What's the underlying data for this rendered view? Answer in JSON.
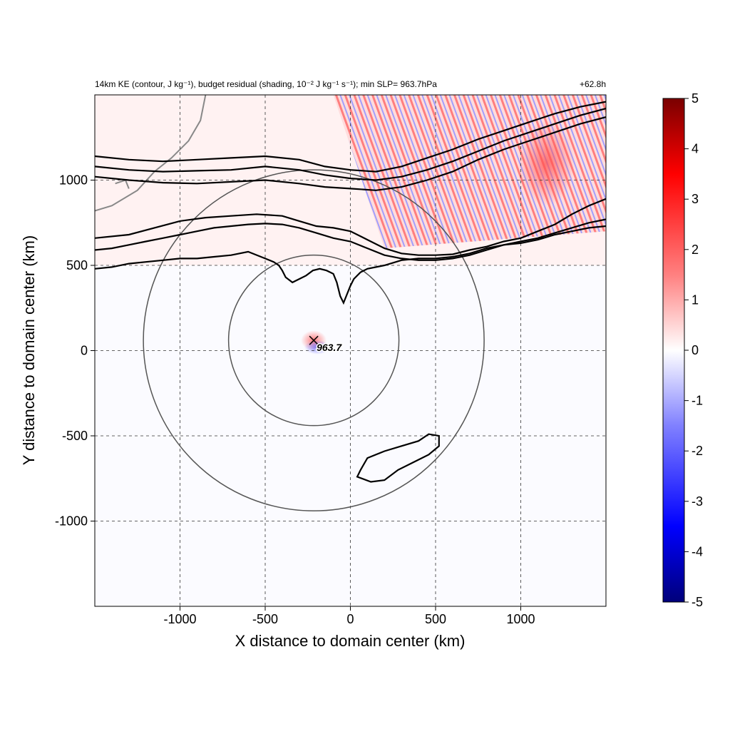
{
  "title_left": "14km KE (contour, J kg⁻¹), budget residual (shading, 10⁻² J kg⁻¹ s⁻¹); min SLP= 963.7hPa",
  "title_right": "+62.8h",
  "colors": {
    "contour": "#000000",
    "ring": "#555555",
    "grid": "#333333",
    "coast": "#888888",
    "colormap": [
      "#00007a",
      "#0000ff",
      "#7a7aff",
      "#ffffff",
      "#ff7a7a",
      "#ff0000",
      "#7a0000"
    ]
  },
  "chart_data": {
    "type": "heatmap",
    "xlabel": "X distance to domain center (km)",
    "ylabel": "Y distance to domain center (km)",
    "xlim": [
      -1500,
      1500
    ],
    "ylim": [
      -1500,
      1500
    ],
    "x_ticks": [
      -1000,
      -500,
      0,
      500,
      1000
    ],
    "y_ticks": [
      -1000,
      -500,
      0,
      500,
      1000
    ],
    "x_tick_labels": [
      "-1000",
      "-500",
      "0",
      "500",
      "1000"
    ],
    "y_tick_labels": [
      "-1000",
      "-500",
      "0",
      "500",
      "1000"
    ],
    "grid": true,
    "colorbar": {
      "range": [
        -5,
        5
      ],
      "ticks": [
        5,
        4,
        3,
        2,
        1,
        0,
        -1,
        -2,
        -3,
        -4,
        -5
      ],
      "tick_labels": [
        "5",
        "4",
        "3",
        "2",
        "1",
        "0",
        "-1",
        "-2",
        "-3",
        "-4",
        "-5"
      ],
      "placement": "right"
    },
    "storm": {
      "x": -215,
      "y": 60,
      "label": "963.7",
      "min_slp_hPa": 963.7
    },
    "range_rings": [
      {
        "center_x": -215,
        "center_y": 60,
        "radius_km": 500
      },
      {
        "center_x": -215,
        "center_y": 60,
        "radius_km": 1000
      }
    ],
    "ke_contours": [
      {
        "points": [
          [
            -1500,
            -1500
          ],
          [
            -1500,
            -1500
          ]
        ]
      },
      {
        "points": [
          [
            -1500,
            660
          ],
          [
            -1300,
            680
          ],
          [
            -1150,
            720
          ],
          [
            -1000,
            760
          ],
          [
            -850,
            780
          ],
          [
            -700,
            790
          ],
          [
            -550,
            800
          ],
          [
            -400,
            790
          ],
          [
            -300,
            760
          ],
          [
            -200,
            730
          ],
          [
            -100,
            720
          ],
          [
            0,
            700
          ],
          [
            100,
            650
          ],
          [
            200,
            600
          ],
          [
            300,
            570
          ],
          [
            400,
            560
          ],
          [
            500,
            560
          ],
          [
            600,
            565
          ],
          [
            700,
            590
          ],
          [
            800,
            610
          ],
          [
            900,
            640
          ],
          [
            1000,
            660
          ],
          [
            1100,
            700
          ],
          [
            1200,
            740
          ],
          [
            1300,
            800
          ],
          [
            1400,
            850
          ],
          [
            1500,
            890
          ]
        ]
      },
      {
        "points": [
          [
            -1500,
            1020
          ],
          [
            -1300,
            1000
          ],
          [
            -1100,
            985
          ],
          [
            -900,
            980
          ],
          [
            -700,
            990
          ],
          [
            -500,
            1000
          ],
          [
            -300,
            980
          ],
          [
            -150,
            960
          ],
          [
            0,
            950
          ],
          [
            150,
            940
          ],
          [
            300,
            960
          ],
          [
            450,
            1000
          ],
          [
            600,
            1050
          ],
          [
            750,
            1120
          ],
          [
            900,
            1180
          ],
          [
            1050,
            1230
          ],
          [
            1200,
            1280
          ],
          [
            1350,
            1330
          ],
          [
            1500,
            1370
          ]
        ]
      },
      {
        "points": [
          [
            -1500,
            1080
          ],
          [
            -1300,
            1060
          ],
          [
            -1100,
            1050
          ],
          [
            -900,
            1055
          ],
          [
            -700,
            1060
          ],
          [
            -500,
            1080
          ],
          [
            -300,
            1060
          ],
          [
            -150,
            1030
          ],
          [
            0,
            1010
          ],
          [
            150,
            1000
          ],
          [
            300,
            1020
          ],
          [
            450,
            1060
          ],
          [
            600,
            1110
          ],
          [
            750,
            1170
          ],
          [
            900,
            1230
          ],
          [
            1050,
            1280
          ],
          [
            1200,
            1330
          ],
          [
            1350,
            1380
          ],
          [
            1500,
            1420
          ]
        ]
      },
      {
        "points": [
          [
            -1500,
            1140
          ],
          [
            -1300,
            1120
          ],
          [
            -1100,
            1110
          ],
          [
            -900,
            1120
          ],
          [
            -700,
            1130
          ],
          [
            -500,
            1140
          ],
          [
            -300,
            1120
          ],
          [
            -150,
            1080
          ],
          [
            0,
            1060
          ],
          [
            150,
            1050
          ],
          [
            300,
            1080
          ],
          [
            450,
            1130
          ],
          [
            600,
            1180
          ],
          [
            750,
            1240
          ],
          [
            900,
            1290
          ],
          [
            1050,
            1340
          ],
          [
            1200,
            1390
          ],
          [
            1350,
            1430
          ],
          [
            1500,
            1460
          ]
        ]
      }
    ],
    "ke_contours_outer": [
      {
        "points": [
          [
            -1500,
            590
          ],
          [
            -1400,
            600
          ],
          [
            -1300,
            620
          ],
          [
            -1200,
            640
          ],
          [
            -1100,
            660
          ],
          [
            -1000,
            680
          ],
          [
            -900,
            700
          ],
          [
            -800,
            720
          ],
          [
            -700,
            730
          ],
          [
            -600,
            740
          ],
          [
            -500,
            745
          ],
          [
            -400,
            740
          ],
          [
            -300,
            720
          ],
          [
            -200,
            690
          ],
          [
            -100,
            660
          ],
          [
            0,
            640
          ],
          [
            100,
            600
          ],
          [
            200,
            560
          ],
          [
            300,
            540
          ],
          [
            400,
            530
          ],
          [
            500,
            530
          ],
          [
            600,
            540
          ],
          [
            700,
            560
          ],
          [
            800,
            590
          ],
          [
            900,
            620
          ],
          [
            1000,
            640
          ],
          [
            1100,
            660
          ],
          [
            1200,
            690
          ],
          [
            1300,
            720
          ],
          [
            1400,
            750
          ],
          [
            1500,
            770
          ]
        ]
      },
      {
        "points": [
          [
            -1500,
            480
          ],
          [
            -1400,
            490
          ],
          [
            -1300,
            510
          ],
          [
            -1200,
            520
          ],
          [
            -1100,
            530
          ],
          [
            -1000,
            540
          ],
          [
            -900,
            540
          ],
          [
            -800,
            550
          ],
          [
            -700,
            560
          ],
          [
            -600,
            580
          ],
          [
            -500,
            540
          ],
          [
            -450,
            520
          ],
          [
            -420,
            500
          ],
          [
            -400,
            470
          ],
          [
            -380,
            430
          ],
          [
            -340,
            400
          ],
          [
            -300,
            420
          ],
          [
            -260,
            440
          ],
          [
            -220,
            470
          ],
          [
            -180,
            480
          ],
          [
            -140,
            470
          ],
          [
            -100,
            450
          ],
          [
            -80,
            400
          ],
          [
            -60,
            320
          ],
          [
            -40,
            280
          ],
          [
            -20,
            330
          ],
          [
            0,
            380
          ],
          [
            20,
            420
          ],
          [
            60,
            460
          ],
          [
            100,
            480
          ],
          [
            200,
            500
          ],
          [
            300,
            530
          ],
          [
            400,
            540
          ],
          [
            500,
            540
          ],
          [
            600,
            550
          ],
          [
            700,
            570
          ],
          [
            800,
            600
          ],
          [
            900,
            620
          ],
          [
            1000,
            630
          ],
          [
            1100,
            650
          ],
          [
            1200,
            680
          ],
          [
            1300,
            700
          ],
          [
            1400,
            720
          ],
          [
            1500,
            730
          ]
        ]
      }
    ],
    "ke_closed_contour": {
      "points": [
        [
          60,
          -700
        ],
        [
          100,
          -630
        ],
        [
          200,
          -590
        ],
        [
          300,
          -560
        ],
        [
          400,
          -530
        ],
        [
          460,
          -490
        ],
        [
          520,
          -500
        ],
        [
          520,
          -560
        ],
        [
          460,
          -610
        ],
        [
          380,
          -650
        ],
        [
          280,
          -700
        ],
        [
          200,
          -760
        ],
        [
          120,
          -770
        ],
        [
          40,
          -740
        ]
      ]
    }
  }
}
